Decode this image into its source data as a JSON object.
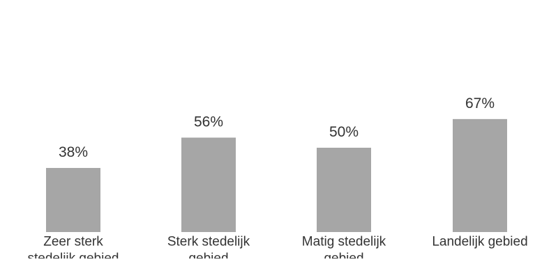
{
  "chart_data": {
    "type": "bar",
    "categories": [
      "Zeer sterk stedelijk gebied",
      "Sterk stedelijk gebied",
      "Matig stedelijk gebied",
      "Landelijk gebied"
    ],
    "category_label_lines": [
      [
        "Zeer sterk",
        "stedelijk gebied"
      ],
      [
        "Sterk stedelijk",
        "gebied"
      ],
      [
        "Matig stedelijk",
        "gebied"
      ],
      [
        "Landelijk gebied"
      ]
    ],
    "values": [
      38,
      56,
      50,
      67
    ],
    "data_labels": [
      "38%",
      "56%",
      "50%",
      "67%"
    ],
    "unit": "%",
    "title": "",
    "xlabel": "",
    "ylabel": "",
    "ylim": [
      0,
      100
    ],
    "grid": false,
    "legend": "none",
    "bar_color": "#a6a6a6",
    "text_color": "#333333"
  }
}
